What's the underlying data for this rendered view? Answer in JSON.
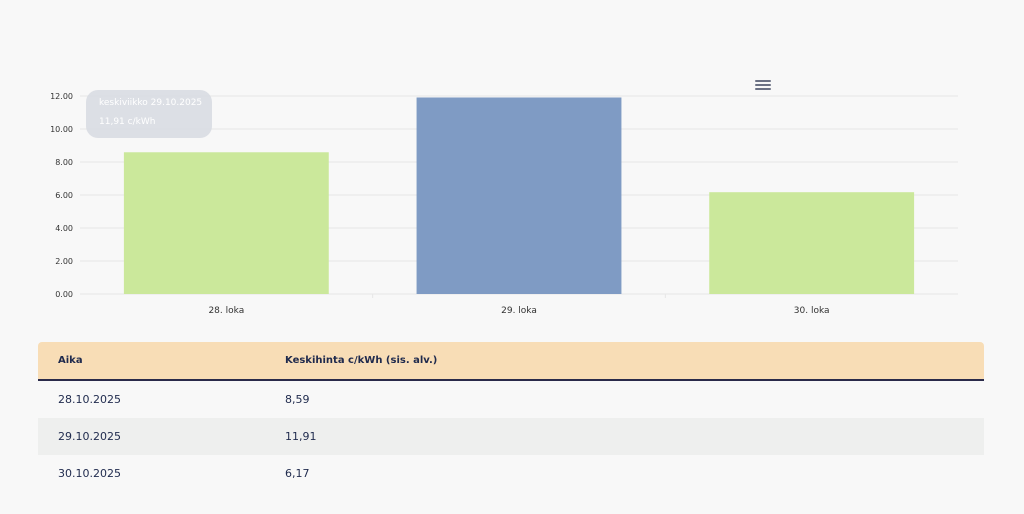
{
  "chart_data": {
    "type": "bar",
    "categories": [
      "28. loka",
      "29. loka",
      "30. loka"
    ],
    "values": [
      8.59,
      11.91,
      6.17
    ],
    "highlighted_index": 1,
    "ylim": [
      0,
      12
    ],
    "yticks": [
      "0.00",
      "2.00",
      "4.00",
      "6.00",
      "8.00",
      "10.00",
      "12.00"
    ],
    "grid": true,
    "colors": {
      "bar": "#cbe89b",
      "highlighted_bar": "#7f9bc4",
      "grid": "#e6e6e6",
      "axis_text": "#333333"
    }
  },
  "tooltip": {
    "line1": "keskiviikko 29.10.2025",
    "line2": "11,91 c/kWh"
  },
  "menu": {
    "icon": "hamburger-menu-icon"
  },
  "table": {
    "headers": {
      "time": "Aika",
      "price": "Keskihinta c/kWh (sis. alv.)"
    },
    "rows": [
      {
        "date": "28.10.2025",
        "price": "8,59"
      },
      {
        "date": "29.10.2025",
        "price": "11,91"
      },
      {
        "date": "30.10.2025",
        "price": "6,17"
      }
    ],
    "colors": {
      "header_bg": "#f8ddb6",
      "alt_row_bg": "#eeefee",
      "text": "#1f2a4d"
    }
  }
}
